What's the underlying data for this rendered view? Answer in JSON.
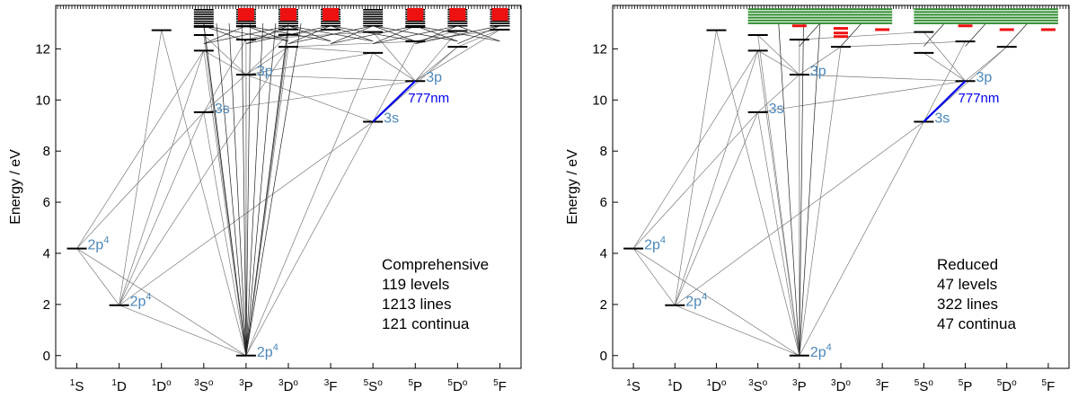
{
  "chart_data": [
    {
      "type": "grotrian-diagram",
      "ylabel": "Energy / eV",
      "ylim": [
        -0.5,
        13.7
      ],
      "yticks": [
        0,
        2,
        4,
        6,
        8,
        10,
        12
      ],
      "xlim": [
        -0.5,
        10.5
      ],
      "columns": [
        {
          "pre": "1",
          "letter": "S",
          "post": ""
        },
        {
          "pre": "1",
          "letter": "D",
          "post": ""
        },
        {
          "pre": "1",
          "letter": "D",
          "post": "o"
        },
        {
          "pre": "3",
          "letter": "S",
          "post": "o"
        },
        {
          "pre": "3",
          "letter": "P",
          "post": ""
        },
        {
          "pre": "3",
          "letter": "D",
          "post": "o"
        },
        {
          "pre": "3",
          "letter": "F",
          "post": ""
        },
        {
          "pre": "5",
          "letter": "S",
          "post": "o"
        },
        {
          "pre": "5",
          "letter": "P",
          "post": ""
        },
        {
          "pre": "5",
          "letter": "D",
          "post": "o"
        },
        {
          "pre": "5",
          "letter": "F",
          "post": ""
        }
      ],
      "levels": [
        {
          "col": 0,
          "e": 4.19
        },
        {
          "col": 1,
          "e": 1.97
        },
        {
          "col": 2,
          "e": 12.73
        },
        {
          "col": 3,
          "e": 9.52
        },
        {
          "col": 3,
          "e": 11.93
        },
        {
          "col": 3,
          "e": 12.54
        },
        {
          "col": 3,
          "e": 12.86
        },
        {
          "col": 4,
          "e": 0.0
        },
        {
          "col": 4,
          "e": 10.99
        },
        {
          "col": 4,
          "e": 12.36
        },
        {
          "col": 4,
          "e": 12.88
        },
        {
          "col": 5,
          "e": 12.08
        },
        {
          "col": 5,
          "e": 12.55
        },
        {
          "col": 5,
          "e": 12.76
        },
        {
          "col": 6,
          "e": 12.75
        },
        {
          "col": 7,
          "e": 9.15
        },
        {
          "col": 7,
          "e": 11.84
        },
        {
          "col": 7,
          "e": 12.66
        },
        {
          "col": 8,
          "e": 10.74
        },
        {
          "col": 8,
          "e": 12.29
        },
        {
          "col": 8,
          "e": 12.85
        },
        {
          "col": 9,
          "e": 12.08
        },
        {
          "col": 9,
          "e": 12.7
        },
        {
          "col": 10,
          "e": 12.75
        }
      ],
      "level_labels": [
        {
          "col": 0,
          "e": 4.19,
          "text": "2p",
          "sup": "4"
        },
        {
          "col": 1,
          "e": 1.97,
          "text": "2p",
          "sup": "4"
        },
        {
          "col": 4,
          "e": 0.0,
          "text": "2p",
          "sup": "4"
        },
        {
          "col": 3,
          "e": 9.52,
          "text": "3s",
          "sup": ""
        },
        {
          "col": 4,
          "e": 10.99,
          "text": "3p",
          "sup": ""
        },
        {
          "col": 7,
          "e": 9.15,
          "text": "3s",
          "sup": ""
        },
        {
          "col": 8,
          "e": 10.74,
          "text": "3p",
          "sup": ""
        }
      ],
      "highlight_line": {
        "from": [
          7,
          9.15
        ],
        "to": [
          8,
          10.74
        ],
        "label": "777nm"
      },
      "dense_top": {
        "emin": 12.9,
        "emax": 13.6,
        "red_cols": [
          4,
          5,
          6,
          8,
          9,
          10
        ],
        "style": "solid"
      },
      "lines": [
        [
          0,
          4.19,
          3,
          9.52
        ],
        [
          0,
          4.19,
          3,
          11.93
        ],
        [
          0,
          4.19,
          1,
          1.97
        ],
        [
          0,
          4.19,
          4,
          0.0
        ],
        [
          1,
          1.97,
          2,
          12.73
        ],
        [
          1,
          1.97,
          3,
          9.52
        ],
        [
          1,
          1.97,
          3,
          11.93
        ],
        [
          1,
          1.97,
          4,
          0.0
        ],
        [
          1,
          1.97,
          7,
          9.15
        ],
        [
          1,
          1.97,
          5,
          12.08
        ],
        [
          2,
          12.73,
          4,
          0.0
        ],
        [
          3,
          9.52,
          4,
          0.0
        ],
        [
          3,
          9.52,
          4,
          10.99
        ],
        [
          3,
          9.52,
          8,
          10.74
        ],
        [
          3,
          9.52,
          4,
          12.36
        ],
        [
          3,
          11.93,
          4,
          0.0
        ],
        [
          3,
          11.93,
          4,
          10.99
        ],
        [
          3,
          12.54,
          4,
          0.0
        ],
        [
          3,
          12.86,
          4,
          0.0
        ],
        [
          4,
          0.0,
          4,
          10.99
        ],
        [
          4,
          0.0,
          5,
          12.08
        ],
        [
          4,
          0.0,
          5,
          12.55
        ],
        [
          4,
          0.0,
          5,
          12.76
        ],
        [
          4,
          0.0,
          4,
          12.36
        ],
        [
          4,
          0.0,
          7,
          9.15
        ],
        [
          4,
          0.0,
          7,
          11.84
        ],
        [
          4,
          10.99,
          5,
          12.08
        ],
        [
          4,
          10.99,
          5,
          12.55
        ],
        [
          4,
          10.99,
          3,
          12.54
        ],
        [
          4,
          10.99,
          8,
          10.74
        ],
        [
          4,
          10.99,
          7,
          11.84
        ],
        [
          4,
          12.36,
          5,
          12.76
        ],
        [
          4,
          12.36,
          6,
          12.75
        ],
        [
          4,
          12.36,
          7,
          12.66
        ],
        [
          5,
          12.08,
          8,
          12.29
        ],
        [
          5,
          12.08,
          7,
          11.84
        ],
        [
          7,
          9.15,
          8,
          12.29
        ],
        [
          7,
          9.15,
          9,
          12.08
        ],
        [
          7,
          9.15,
          4,
          10.99
        ],
        [
          8,
          10.74,
          7,
          11.84
        ],
        [
          8,
          10.74,
          7,
          12.66
        ],
        [
          8,
          10.74,
          9,
          12.08
        ],
        [
          8,
          10.74,
          9,
          12.7
        ],
        [
          8,
          10.74,
          10,
          12.75
        ],
        [
          8,
          12.29,
          9,
          12.7
        ],
        [
          8,
          12.29,
          10,
          12.75
        ],
        [
          9,
          12.08,
          10,
          12.75
        ]
      ],
      "annotation_lines": [
        "Comprehensive",
        "119 levels",
        "1213 lines",
        "121 continua"
      ]
    },
    {
      "type": "grotrian-diagram",
      "ylabel": "Energy / eV",
      "ylim": [
        -0.5,
        13.7
      ],
      "yticks": [
        0,
        2,
        4,
        6,
        8,
        10,
        12
      ],
      "xlim": [
        -0.5,
        10.5
      ],
      "columns": [
        {
          "pre": "1",
          "letter": "S",
          "post": ""
        },
        {
          "pre": "1",
          "letter": "D",
          "post": ""
        },
        {
          "pre": "1",
          "letter": "D",
          "post": "o"
        },
        {
          "pre": "3",
          "letter": "S",
          "post": "o"
        },
        {
          "pre": "3",
          "letter": "P",
          "post": ""
        },
        {
          "pre": "3",
          "letter": "D",
          "post": "o"
        },
        {
          "pre": "3",
          "letter": "F",
          "post": ""
        },
        {
          "pre": "5",
          "letter": "S",
          "post": "o"
        },
        {
          "pre": "5",
          "letter": "P",
          "post": ""
        },
        {
          "pre": "5",
          "letter": "D",
          "post": "o"
        },
        {
          "pre": "5",
          "letter": "F",
          "post": ""
        }
      ],
      "levels": [
        {
          "col": 0,
          "e": 4.19
        },
        {
          "col": 1,
          "e": 1.97
        },
        {
          "col": 2,
          "e": 12.73
        },
        {
          "col": 3,
          "e": 9.52
        },
        {
          "col": 3,
          "e": 11.93
        },
        {
          "col": 3,
          "e": 12.54
        },
        {
          "col": 4,
          "e": 0.0
        },
        {
          "col": 4,
          "e": 10.99
        },
        {
          "col": 4,
          "e": 12.36
        },
        {
          "col": 5,
          "e": 12.08
        },
        {
          "col": 7,
          "e": 9.15
        },
        {
          "col": 7,
          "e": 11.84
        },
        {
          "col": 7,
          "e": 12.66
        },
        {
          "col": 8,
          "e": 10.74
        },
        {
          "col": 8,
          "e": 12.29
        },
        {
          "col": 9,
          "e": 12.08
        }
      ],
      "red_levels": [
        {
          "col": 4,
          "e": 12.9
        },
        {
          "col": 5,
          "e": 12.8
        },
        {
          "col": 5,
          "e": 12.62
        },
        {
          "col": 5,
          "e": 12.48
        },
        {
          "col": 6,
          "e": 12.75
        },
        {
          "col": 8,
          "e": 12.9
        },
        {
          "col": 9,
          "e": 12.75
        },
        {
          "col": 10,
          "e": 12.75
        }
      ],
      "level_labels": [
        {
          "col": 0,
          "e": 4.19,
          "text": "2p",
          "sup": "4"
        },
        {
          "col": 1,
          "e": 1.97,
          "text": "2p",
          "sup": "4"
        },
        {
          "col": 4,
          "e": 0.0,
          "text": "2p",
          "sup": "4"
        },
        {
          "col": 3,
          "e": 9.52,
          "text": "3s",
          "sup": ""
        },
        {
          "col": 4,
          "e": 10.99,
          "text": "3p",
          "sup": ""
        },
        {
          "col": 7,
          "e": 9.15,
          "text": "3s",
          "sup": ""
        },
        {
          "col": 8,
          "e": 10.74,
          "text": "3p",
          "sup": ""
        }
      ],
      "highlight_line": {
        "from": [
          7,
          9.15
        ],
        "to": [
          8,
          10.74
        ],
        "label": "777nm"
      },
      "dense_top": {
        "emin": 13.0,
        "emax": 13.55,
        "green_spans": [
          [
            3,
            6
          ],
          [
            7,
            10
          ]
        ],
        "style": "green"
      },
      "lines": [
        [
          0,
          4.19,
          3,
          9.52
        ],
        [
          0,
          4.19,
          3,
          11.93
        ],
        [
          0,
          4.19,
          1,
          1.97
        ],
        [
          0,
          4.19,
          4,
          0.0
        ],
        [
          1,
          1.97,
          2,
          12.73
        ],
        [
          1,
          1.97,
          3,
          9.52
        ],
        [
          1,
          1.97,
          3,
          11.93
        ],
        [
          1,
          1.97,
          4,
          0.0
        ],
        [
          1,
          1.97,
          7,
          9.15
        ],
        [
          2,
          12.73,
          4,
          0.0
        ],
        [
          3,
          9.52,
          4,
          0.0
        ],
        [
          3,
          9.52,
          4,
          10.99
        ],
        [
          3,
          9.52,
          8,
          10.74
        ],
        [
          3,
          11.93,
          4,
          0.0
        ],
        [
          3,
          11.93,
          4,
          10.99
        ],
        [
          3,
          12.54,
          4,
          0.0
        ],
        [
          4,
          0.0,
          4,
          10.99
        ],
        [
          4,
          0.0,
          5,
          12.08
        ],
        [
          4,
          0.0,
          4,
          12.36
        ],
        [
          4,
          0.0,
          7,
          9.15
        ],
        [
          4,
          10.99,
          5,
          12.08
        ],
        [
          4,
          10.99,
          3,
          12.54
        ],
        [
          4,
          10.99,
          8,
          10.74
        ],
        [
          4,
          12.36,
          7,
          12.66
        ],
        [
          5,
          12.08,
          8,
          12.29
        ],
        [
          7,
          9.15,
          8,
          12.29
        ],
        [
          7,
          9.15,
          9,
          12.08
        ],
        [
          8,
          10.74,
          7,
          11.84
        ],
        [
          8,
          10.74,
          7,
          12.66
        ],
        [
          8,
          10.74,
          9,
          12.08
        ]
      ],
      "annotation_lines": [
        "Reduced",
        "47 levels",
        "322 lines",
        "47 continua"
      ]
    }
  ],
  "colors": {
    "axis": "#000000",
    "line": "#7a7a7a",
    "label": "#4a86b8",
    "highlight": "#0000ee",
    "red": "#ee1111",
    "green": "#2e8b2e"
  }
}
